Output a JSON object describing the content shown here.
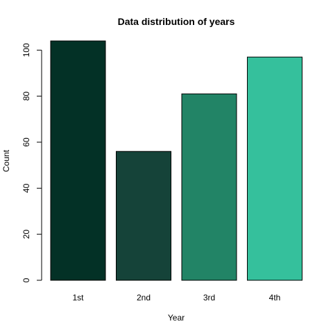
{
  "chart_data": {
    "type": "bar",
    "title": "Data distribution of years",
    "xlabel": "Year",
    "ylabel": "Count",
    "categories": [
      "1st",
      "2nd",
      "3rd",
      "4th"
    ],
    "values": [
      104,
      56,
      81,
      97
    ],
    "colors": [
      "#033126",
      "#154339",
      "#228466",
      "#35C09C"
    ],
    "ylim": [
      0,
      104
    ],
    "yticks": [
      0,
      20,
      40,
      60,
      80,
      100
    ],
    "grid": false,
    "legend": "none"
  }
}
